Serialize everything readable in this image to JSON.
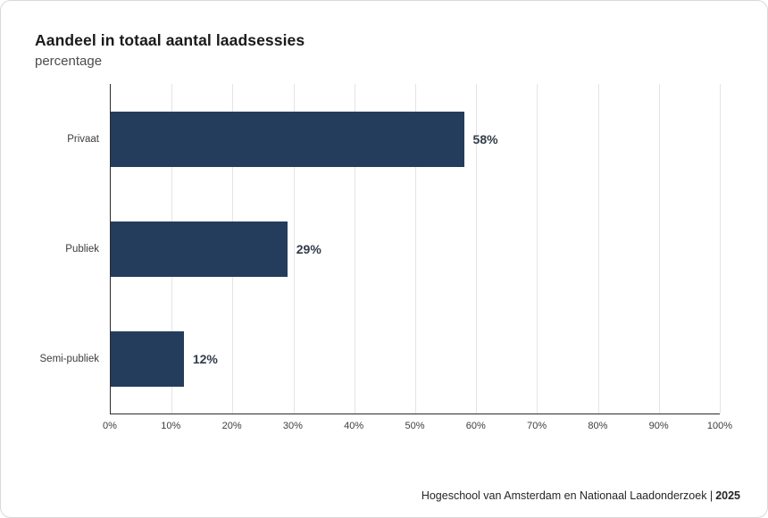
{
  "chart_data": {
    "type": "bar",
    "orientation": "horizontal",
    "title": "Aandeel in totaal aantal laadsessies",
    "subtitle": "percentage",
    "categories": [
      "Privaat",
      "Publiek",
      "Semi-publiek"
    ],
    "values": [
      58,
      29,
      12
    ],
    "value_labels": [
      "58%",
      "29%",
      "12%"
    ],
    "xlim": [
      0,
      100
    ],
    "x_tick_values": [
      0,
      10,
      20,
      30,
      40,
      50,
      60,
      70,
      80,
      90,
      100
    ],
    "x_ticks": [
      "0%",
      "10%",
      "20%",
      "30%",
      "40%",
      "50%",
      "60%",
      "70%",
      "80%",
      "90%",
      "100%"
    ],
    "grid": true,
    "legend": false,
    "bar_color": "#253d5c",
    "axis_color": "#2b2b2b",
    "gridline_color": "#e4e4e4"
  },
  "footer": {
    "source": "Hogeschool van Amsterdam en Nationaal Laadonderzoek |",
    "year": "2025"
  }
}
